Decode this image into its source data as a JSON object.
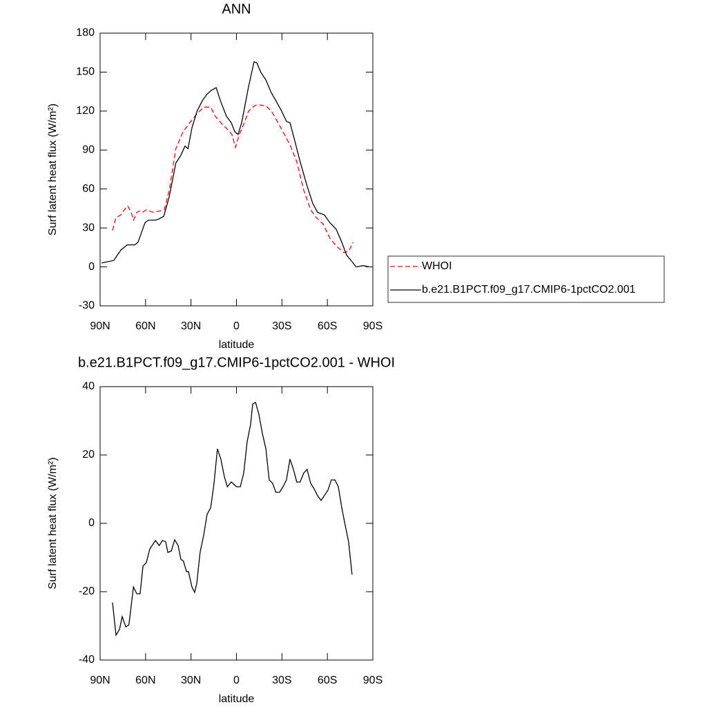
{
  "chart_data": [
    {
      "type": "line",
      "title": "ANN",
      "x_label": "latitude",
      "y_label": "Surf latent heat flux (W/m²)",
      "xlim": [
        90,
        -90
      ],
      "xticks": [
        {
          "value": 90,
          "label": "90N"
        },
        {
          "value": 60,
          "label": "60N"
        },
        {
          "value": 30,
          "label": "30N"
        },
        0,
        {
          "value": -30,
          "label": "30S"
        },
        {
          "value": -60,
          "label": "60S"
        },
        {
          "value": -90,
          "label": "90S"
        }
      ],
      "ylim": [
        -30,
        180
      ],
      "yticks": [
        -30,
        0,
        30,
        60,
        90,
        120,
        150,
        180
      ],
      "legend": "right",
      "series": [
        {
          "name": "WHOI",
          "color": "#ff0000",
          "line_style": "dashed",
          "x": [
            81.8,
            79.5,
            76.3,
            74,
            71.8,
            69.5,
            68,
            65.8,
            64,
            62,
            59.5,
            55,
            51,
            47.6,
            44.4,
            40,
            35.3,
            30.8,
            26,
            21.6,
            17,
            14,
            10.3,
            6,
            3,
            0.7,
            -1.6,
            -4.8,
            -8,
            -10.7,
            -13.5,
            -19.4,
            -23,
            -27,
            -30.7,
            -35.3,
            -39.8,
            -44.4,
            -49,
            -52.6,
            -57.2,
            -61.7,
            -66,
            -70.8,
            -74,
            -77
          ],
          "values": [
            28,
            38,
            40,
            44,
            47,
            42,
            36,
            42,
            43,
            42,
            44,
            42,
            43,
            44,
            59,
            91,
            104,
            111,
            118,
            123,
            123,
            116,
            111,
            106,
            102,
            92,
            101,
            110,
            120,
            123,
            125,
            124,
            120,
            112,
            104,
            94,
            81,
            59,
            44,
            38,
            33,
            22,
            16,
            11,
            12,
            19
          ]
        },
        {
          "name": "b.e21.B1PCT.f09_g17.CMIP6-1pctCO2.001",
          "color": "#000000",
          "line_style": "solid",
          "x": [
            89,
            81,
            76.3,
            72,
            67,
            65,
            60.4,
            58,
            53.5,
            51,
            48,
            44.4,
            40,
            36.7,
            34,
            32,
            29.4,
            26,
            22.5,
            19.4,
            16.6,
            13.4,
            10.3,
            6.6,
            3.4,
            1.1,
            -1.1,
            -3.4,
            -8,
            -11.6,
            -13.5,
            -16,
            -19.4,
            -23,
            -26,
            -29.8,
            -33,
            -35.3,
            -38.5,
            -42,
            -46.7,
            -50.3,
            -53.5,
            -58,
            -61.7,
            -65.8,
            -69.5,
            -72.7,
            -76.3,
            -79,
            -83.6,
            -87.7
          ],
          "values": [
            3,
            5,
            13,
            17,
            17,
            19,
            34,
            36,
            36,
            37,
            39,
            54,
            80,
            86,
            93,
            91,
            107,
            120,
            128,
            133,
            136,
            138,
            127,
            116,
            111,
            104,
            102,
            111,
            139,
            158,
            157,
            150,
            144,
            134,
            128,
            120,
            112,
            111,
            97,
            81,
            62,
            49,
            42,
            40,
            34,
            29,
            19,
            9,
            4,
            0,
            1,
            0
          ]
        }
      ]
    },
    {
      "type": "line",
      "title": "b.e21.B1PCT.f09_g17.CMIP6-1pctCO2.001 - WHOI",
      "x_label": "latitude",
      "y_label": "Surf latent heat flux (W/m²)",
      "xlim": [
        90,
        -90
      ],
      "xticks": [
        {
          "value": 90,
          "label": "90N"
        },
        {
          "value": 60,
          "label": "60N"
        },
        {
          "value": 30,
          "label": "30N"
        },
        0,
        {
          "value": -30,
          "label": "30S"
        },
        {
          "value": -60,
          "label": "60S"
        },
        {
          "value": -90,
          "label": "90S"
        }
      ],
      "ylim": [
        -40,
        40
      ],
      "yticks": [
        -40,
        -20,
        0,
        20,
        40
      ],
      "series": [
        {
          "color": "#000000",
          "line_style": "solid",
          "x": [
            81.8,
            79.5,
            77.2,
            75.4,
            73,
            71,
            68,
            65.8,
            63.6,
            61.7,
            59.5,
            57.2,
            53.5,
            51,
            48.9,
            46.7,
            45.3,
            43,
            40.8,
            38.5,
            36.7,
            35,
            33,
            31.7,
            29.4,
            27.6,
            26.2,
            24,
            21.6,
            19.4,
            17,
            14.8,
            12.6,
            10.3,
            8,
            6,
            3.4,
            0,
            -2.5,
            -4.8,
            -7,
            -9.3,
            -10.7,
            -12.6,
            -14.8,
            -17,
            -19.4,
            -21.6,
            -23.9,
            -26,
            -28.5,
            -30.7,
            -33,
            -35.3,
            -37.6,
            -39.8,
            -42,
            -44.4,
            -46.6,
            -49,
            -51.2,
            -53.5,
            -55.8,
            -58,
            -60.4,
            -62.6,
            -65,
            -67.2,
            -69.5,
            -71.7,
            -74,
            -76.3
          ],
          "values": [
            -23.2,
            -32.7,
            -31,
            -27.3,
            -30.3,
            -29.7,
            -18.6,
            -20.6,
            -20.6,
            -12.5,
            -11.5,
            -7.5,
            -5,
            -6.5,
            -5,
            -5.4,
            -8.5,
            -8.1,
            -4.8,
            -6.5,
            -10.5,
            -11.1,
            -14.1,
            -14.1,
            -18.6,
            -20.2,
            -17.6,
            -8.5,
            -3.4,
            2.6,
            4.6,
            11.7,
            21.8,
            18.8,
            13.7,
            10.7,
            12.1,
            10.7,
            10.7,
            14.7,
            23.8,
            28.9,
            34.9,
            35.4,
            31.9,
            26.5,
            21.8,
            12.7,
            11.7,
            9.1,
            9.1,
            10.7,
            12.7,
            18.8,
            15.8,
            12.1,
            12.1,
            14.7,
            15.8,
            11.7,
            10.1,
            8.1,
            6.7,
            8.1,
            9.7,
            12.7,
            12.7,
            10.7,
            4.6,
            -0.4,
            -5.4,
            -15
          ]
        }
      ]
    }
  ]
}
